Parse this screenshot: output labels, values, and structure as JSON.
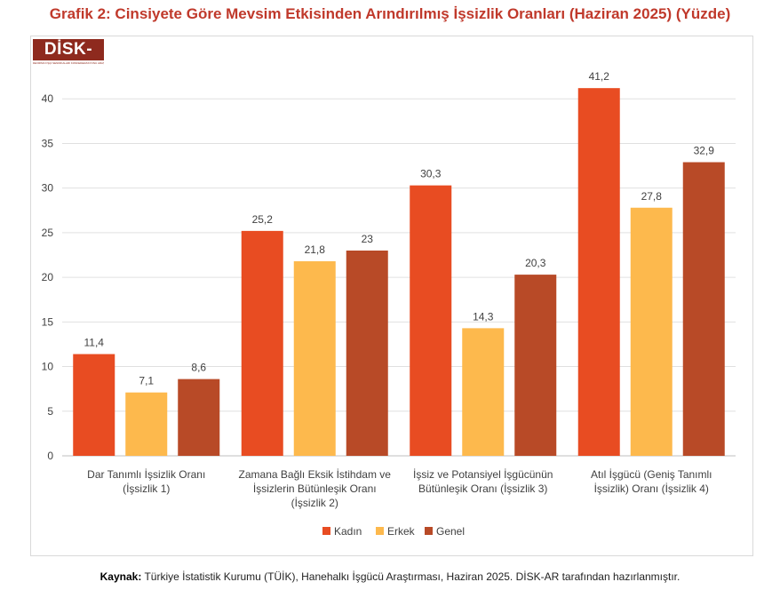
{
  "title": "Grafik 2: Cinsiyete Göre Mevsim Etkisinden Arındırılmış İşsizlik Oranları (Haziran 2025) (Yüzde)",
  "logo": {
    "main": "DİSK-AR",
    "sub": "DEVRİMCİ İŞÇİ SENDİKALARI KONFEDERASYONU ARAŞTIRMA DAİRESİ"
  },
  "source": {
    "label": "Kaynak:",
    "text": " Türkiye İstatistik Kurumu (TÜİK), Hanehalkı İşgücü Araştırması, Haziran 2025. DİSK-AR tarafından hazırlanmıştır."
  },
  "chart_data": {
    "type": "bar",
    "title": "Grafik 2: Cinsiyete Göre Mevsim Etkisinden Arındırılmış İşsizlik Oranları (Haziran 2025) (Yüzde)",
    "xlabel": "",
    "ylabel": "",
    "ylim": [
      0,
      45
    ],
    "yticks": [
      0,
      5,
      10,
      15,
      20,
      25,
      30,
      35,
      40
    ],
    "grid": true,
    "legend_position": "bottom",
    "categories": [
      [
        "Dar Tanımlı İşsizlik Oranı",
        "(İşsizlik 1)"
      ],
      [
        "Zamana Bağlı Eksik İstihdam ve",
        "İşsizlerin Bütünleşik Oranı",
        "(İşsizlik 2)"
      ],
      [
        "İşsiz ve Potansiyel İşgücünün",
        "Bütünleşik Oranı (İşsizlik 3)"
      ],
      [
        "Atıl İşgücü (Geniş Tanımlı",
        "İşsizlik) Oranı (İşsizlik 4)"
      ]
    ],
    "series": [
      {
        "name": "Kadın",
        "color": "#E84C22",
        "values": [
          11.4,
          25.2,
          30.3,
          41.2
        ],
        "labels": [
          "11,4",
          "25,2",
          "30,3",
          "41,2"
        ]
      },
      {
        "name": "Erkek",
        "color": "#FDB94D",
        "values": [
          7.1,
          21.8,
          14.3,
          27.8
        ],
        "labels": [
          "7,1",
          "21,8",
          "14,3",
          "27,8"
        ]
      },
      {
        "name": "Genel",
        "color": "#B84A27",
        "values": [
          8.6,
          23,
          20.3,
          32.9
        ],
        "labels": [
          "8,6",
          "23",
          "20,3",
          "32,9"
        ]
      }
    ]
  }
}
